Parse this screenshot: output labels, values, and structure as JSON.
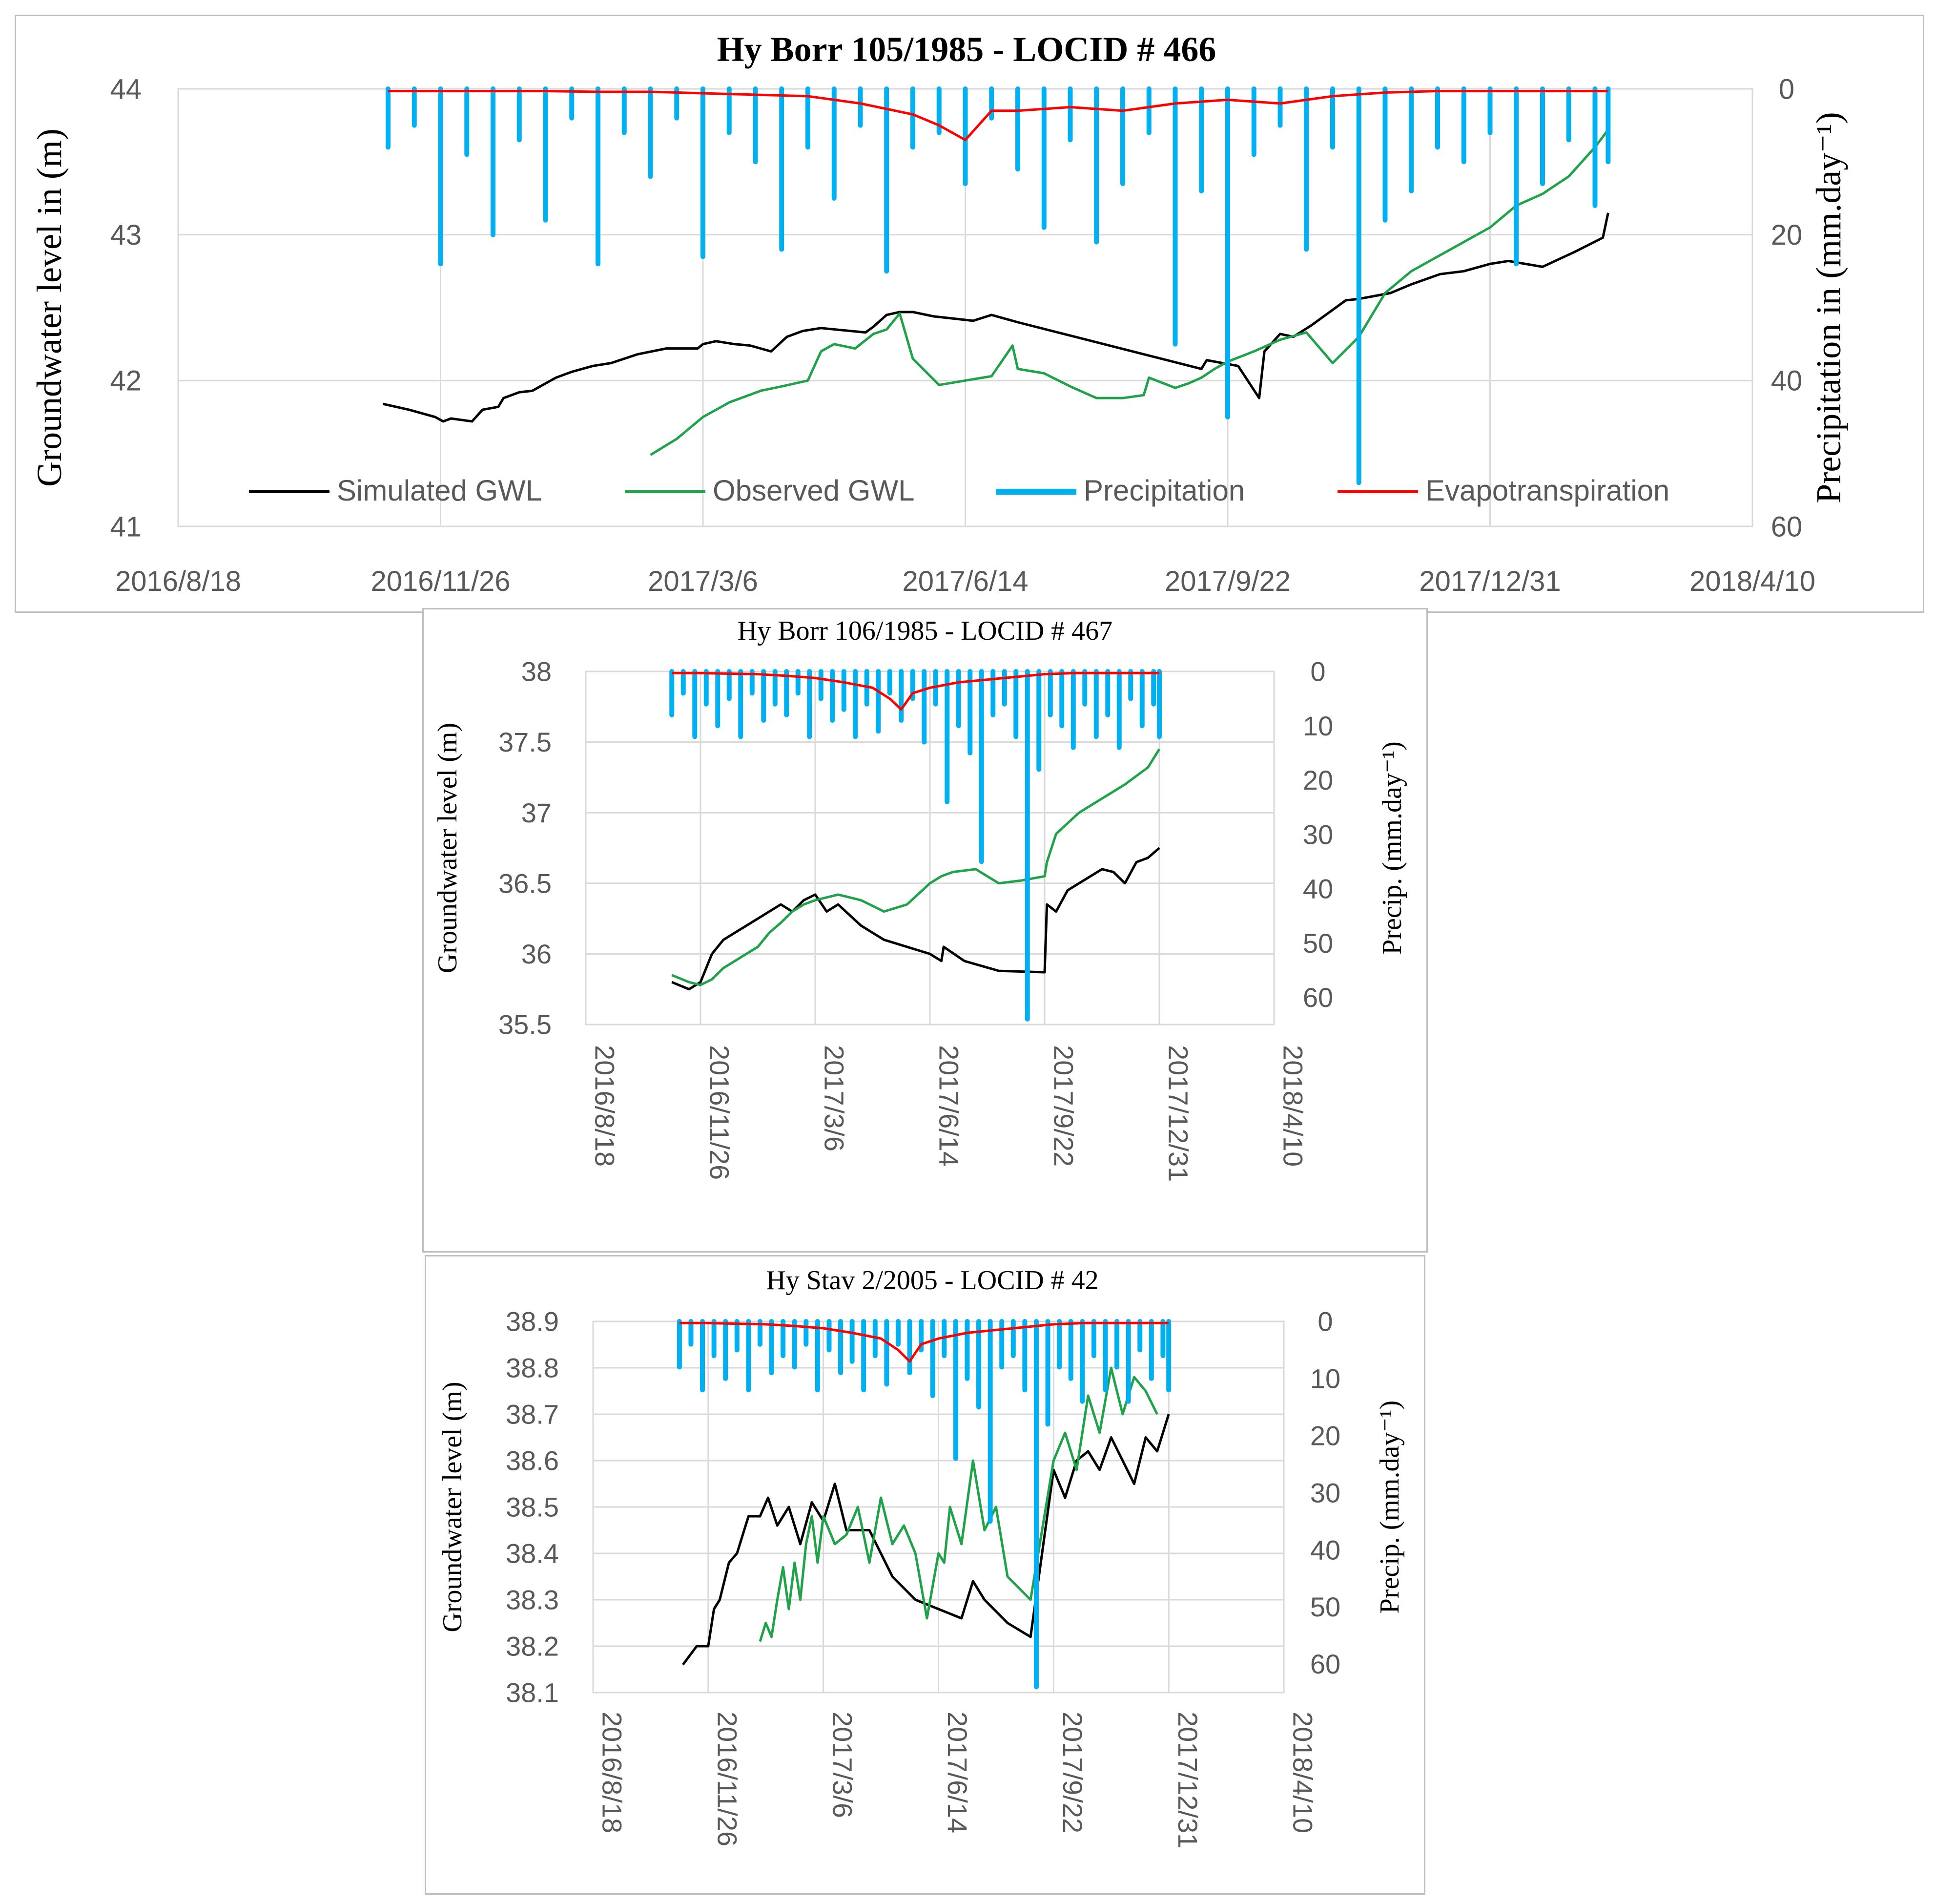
{
  "colors": {
    "simulated": "#000000",
    "observed": "#1fa24a",
    "precipitation": "#00b0f0",
    "evapotranspiration": "#ff0000",
    "grid": "#d9d9d9"
  },
  "chart_data": [
    {
      "type": "line",
      "title": "Hy Borr 105/1985 - LOCID # 466",
      "ylabel": "Groundwater level in (m)",
      "y2label": "Precipitation in (mm.day⁻¹)",
      "ylim": [
        41,
        44
      ],
      "y2lim": [
        0,
        60
      ],
      "y2_inverted": true,
      "yticks": [
        "41",
        "42",
        "43",
        "44"
      ],
      "y2ticks": [
        "0",
        "20",
        "40",
        "60"
      ],
      "x_tick_labels": [
        "2016/8/18",
        "2016/11/26",
        "2017/3/6",
        "2017/6/14",
        "2017/9/22",
        "2017/12/31",
        "2018/4/10"
      ],
      "legend": [
        "Simulated GWL",
        "Observed GWL",
        "Precipitation",
        "Evapotranspiration"
      ],
      "legend_position": "bottom",
      "series": [
        {
          "name": "Simulated GWL",
          "x": [
            78,
            88,
            98,
            101,
            104,
            112,
            116,
            122,
            124,
            130,
            135,
            144,
            150,
            158,
            165,
            175,
            186,
            198,
            200,
            205,
            212,
            218,
            226,
            232,
            238,
            245,
            262,
            265,
            270,
            275,
            280,
            288,
            303,
            310,
            314,
            320,
            390,
            392,
            404,
            412,
            414,
            420,
            425,
            432,
            445,
            450,
            462,
            470,
            481,
            490,
            500,
            507,
            520,
            532,
            543,
            545
          ],
          "values": [
            41.84,
            41.8,
            41.75,
            41.72,
            41.74,
            41.72,
            41.8,
            41.82,
            41.88,
            41.92,
            41.93,
            42.02,
            42.06,
            42.1,
            42.12,
            42.18,
            42.22,
            42.22,
            42.25,
            42.27,
            42.25,
            42.24,
            42.2,
            42.3,
            42.34,
            42.36,
            42.33,
            42.37,
            42.45,
            42.47,
            42.47,
            42.44,
            42.41,
            42.45,
            42.43,
            42.4,
            42.08,
            42.14,
            42.1,
            41.88,
            42.2,
            42.32,
            42.3,
            42.38,
            42.55,
            42.56,
            42.6,
            42.66,
            42.73,
            42.75,
            42.8,
            42.82,
            42.78,
            42.88,
            42.98,
            43.15
          ]
        },
        {
          "name": "Observed GWL",
          "x": [
            180,
            190,
            200,
            210,
            222,
            230,
            240,
            245,
            250,
            258,
            265,
            270,
            275,
            280,
            290,
            300,
            310,
            318,
            320,
            330,
            340,
            350,
            360,
            368,
            370,
            380,
            385,
            390,
            395,
            400,
            410,
            420,
            430,
            440,
            450,
            460,
            470,
            480,
            490,
            500,
            510,
            520,
            530,
            540,
            545
          ],
          "values": [
            41.49,
            41.6,
            41.75,
            41.85,
            41.93,
            41.96,
            42.0,
            42.2,
            42.25,
            42.22,
            42.32,
            42.35,
            42.46,
            42.15,
            41.97,
            42.0,
            42.03,
            42.24,
            42.08,
            42.05,
            41.96,
            41.88,
            41.88,
            41.9,
            42.02,
            41.95,
            41.98,
            42.02,
            42.08,
            42.13,
            42.2,
            42.28,
            42.33,
            42.12,
            42.3,
            42.6,
            42.75,
            42.85,
            42.95,
            43.05,
            43.2,
            43.28,
            43.4,
            43.6,
            43.72
          ]
        },
        {
          "name": "Precipitation",
          "x": [
            80,
            90,
            100,
            110,
            120,
            130,
            140,
            150,
            160,
            170,
            180,
            190,
            200,
            210,
            220,
            230,
            240,
            250,
            260,
            270,
            280,
            290,
            300,
            310,
            320,
            330,
            340,
            350,
            360,
            370,
            380,
            390,
            400,
            410,
            420,
            430,
            440,
            450,
            460,
            470,
            480,
            490,
            500,
            510,
            520,
            530,
            540,
            545
          ],
          "values": [
            8,
            5,
            24,
            9,
            20,
            7,
            18,
            4,
            24,
            6,
            12,
            4,
            23,
            6,
            10,
            22,
            8,
            15,
            5,
            25,
            8,
            6,
            13,
            4,
            11,
            19,
            7,
            21,
            13,
            6,
            35,
            14,
            45,
            9,
            5,
            22,
            8,
            54,
            18,
            14,
            8,
            10,
            6,
            24,
            13,
            7,
            16,
            10
          ]
        },
        {
          "name": "Evapotranspiration",
          "x": [
            80,
            100,
            120,
            140,
            160,
            180,
            200,
            220,
            240,
            260,
            280,
            290,
            300,
            310,
            320,
            340,
            360,
            380,
            400,
            420,
            440,
            460,
            480,
            500,
            520,
            545
          ],
          "values": [
            0.3,
            0.3,
            0.3,
            0.3,
            0.4,
            0.4,
            0.6,
            0.8,
            1.0,
            2.0,
            3.5,
            5.0,
            7.0,
            3.0,
            3.0,
            2.5,
            3.0,
            2.0,
            1.5,
            2.0,
            1.0,
            0.5,
            0.3,
            0.3,
            0.3,
            0.3
          ]
        }
      ]
    },
    {
      "type": "line",
      "title": "Hy Borr 106/1985 - LOCID # 467",
      "ylabel": "Groundwater level (m)",
      "y2label": "Precip. (mm.day⁻¹)",
      "ylim": [
        35.5,
        38
      ],
      "y2lim": [
        0,
        65
      ],
      "y2_inverted": true,
      "yticks": [
        "35.5",
        "36",
        "36.5",
        "37",
        "37.5",
        "38"
      ],
      "y2ticks": [
        "0",
        "10",
        "20",
        "30",
        "40",
        "50",
        "60"
      ],
      "x_tick_labels": [
        "2016/8/18",
        "2016/11/26",
        "2017/3/6",
        "2017/6/14",
        "2017/9/22",
        "2017/12/31",
        "2018/4/10"
      ],
      "series": [
        {
          "name": "Simulated GWL",
          "x": [
            75,
            90,
            100,
            110,
            120,
            130,
            140,
            150,
            160,
            170,
            180,
            190,
            200,
            210,
            220,
            240,
            260,
            280,
            300,
            310,
            312,
            330,
            360,
            400,
            402,
            410,
            420,
            430,
            440,
            450,
            460,
            470,
            480,
            490,
            500
          ],
          "values": [
            35.8,
            35.75,
            35.8,
            36.0,
            36.1,
            36.15,
            36.2,
            36.25,
            36.3,
            36.35,
            36.3,
            36.38,
            36.42,
            36.3,
            36.35,
            36.2,
            36.1,
            36.05,
            36.0,
            35.95,
            36.05,
            35.95,
            35.88,
            35.87,
            36.35,
            36.3,
            36.45,
            36.5,
            36.55,
            36.6,
            36.58,
            36.5,
            36.65,
            36.68,
            36.75
          ]
        },
        {
          "name": "Observed GWL",
          "x": [
            75,
            90,
            100,
            110,
            120,
            130,
            140,
            150,
            160,
            170,
            180,
            190,
            200,
            220,
            240,
            260,
            280,
            300,
            310,
            320,
            340,
            350,
            360,
            380,
            400,
            402,
            410,
            430,
            450,
            470,
            490,
            500
          ],
          "values": [
            35.85,
            35.8,
            35.78,
            35.82,
            35.9,
            35.95,
            36.0,
            36.05,
            36.15,
            36.22,
            36.3,
            36.35,
            36.38,
            36.42,
            36.38,
            36.3,
            36.35,
            36.5,
            36.55,
            36.58,
            36.6,
            36.55,
            36.5,
            36.52,
            36.55,
            36.65,
            36.85,
            37.0,
            37.1,
            37.2,
            37.32,
            37.45
          ]
        },
        {
          "name": "Precipitation",
          "x": [
            75,
            85,
            95,
            105,
            115,
            125,
            135,
            145,
            155,
            165,
            175,
            185,
            195,
            205,
            215,
            225,
            235,
            245,
            255,
            265,
            275,
            285,
            295,
            305,
            315,
            325,
            335,
            345,
            355,
            365,
            375,
            385,
            395,
            405,
            415,
            425,
            435,
            445,
            455,
            465,
            475,
            485,
            495,
            500
          ],
          "values": [
            8,
            4,
            12,
            6,
            10,
            5,
            12,
            4,
            9,
            6,
            8,
            4,
            12,
            5,
            9,
            7,
            12,
            6,
            11,
            4,
            9,
            5,
            13,
            6,
            24,
            10,
            15,
            35,
            8,
            6,
            12,
            64,
            18,
            8,
            10,
            14,
            6,
            12,
            8,
            14,
            5,
            10,
            6,
            12
          ]
        },
        {
          "name": "Evapotranspiration",
          "x": [
            75,
            100,
            125,
            150,
            175,
            200,
            225,
            250,
            265,
            275,
            285,
            300,
            325,
            350,
            375,
            400,
            425,
            450,
            500
          ],
          "values": [
            0.3,
            0.3,
            0.4,
            0.5,
            0.8,
            1.2,
            2.0,
            3.0,
            5.0,
            7.0,
            4.0,
            3.0,
            2.0,
            1.5,
            1.0,
            0.5,
            0.3,
            0.3,
            0.3
          ]
        }
      ]
    },
    {
      "type": "line",
      "title": "Hy Stav 2/2005 - LOCID # 42",
      "ylabel": "Groundwater level (m)",
      "y2label": "Precip. (mm.day⁻¹)",
      "ylim": [
        38.1,
        38.9
      ],
      "y2lim": [
        0,
        65
      ],
      "y2_inverted": true,
      "yticks": [
        "38.1",
        "38.2",
        "38.3",
        "38.4",
        "38.5",
        "38.6",
        "38.7",
        "38.8",
        "38.9"
      ],
      "y2ticks": [
        "0",
        "10",
        "20",
        "30",
        "40",
        "50",
        "60"
      ],
      "x_tick_labels": [
        "2016/8/18",
        "2016/11/26",
        "2017/3/6",
        "2017/6/14",
        "2017/9/22",
        "2017/12/31",
        "2018/4/10"
      ],
      "series": [
        {
          "name": "Simulated GWL",
          "x": [
            78,
            90,
            100,
            105,
            110,
            118,
            125,
            135,
            145,
            152,
            160,
            170,
            180,
            190,
            200,
            210,
            220,
            240,
            260,
            280,
            300,
            320,
            330,
            340,
            360,
            380,
            400,
            410,
            420,
            430,
            440,
            450,
            460,
            470,
            480,
            490,
            500
          ],
          "values": [
            38.16,
            38.2,
            38.2,
            38.28,
            38.3,
            38.38,
            38.4,
            38.48,
            38.48,
            38.52,
            38.46,
            38.5,
            38.42,
            38.51,
            38.47,
            38.55,
            38.45,
            38.45,
            38.35,
            38.3,
            38.28,
            38.26,
            38.34,
            38.3,
            38.25,
            38.22,
            38.58,
            38.52,
            38.6,
            38.62,
            38.58,
            38.65,
            38.6,
            38.55,
            38.65,
            38.62,
            38.7
          ]
        },
        {
          "name": "Observed GWL",
          "x": [
            145,
            150,
            155,
            160,
            165,
            170,
            175,
            180,
            185,
            190,
            195,
            200,
            210,
            220,
            230,
            240,
            250,
            260,
            270,
            280,
            290,
            300,
            305,
            310,
            320,
            330,
            340,
            350,
            360,
            380,
            400,
            410,
            420,
            430,
            440,
            450,
            460,
            470,
            480,
            490
          ],
          "values": [
            38.21,
            38.25,
            38.22,
            38.3,
            38.37,
            38.28,
            38.38,
            38.3,
            38.42,
            38.48,
            38.38,
            38.48,
            38.42,
            38.44,
            38.5,
            38.38,
            38.52,
            38.42,
            38.46,
            38.4,
            38.26,
            38.4,
            38.38,
            38.5,
            38.42,
            38.6,
            38.45,
            38.5,
            38.35,
            38.3,
            38.6,
            38.66,
            38.58,
            38.74,
            38.66,
            38.8,
            38.7,
            38.78,
            38.75,
            38.7
          ]
        },
        {
          "name": "Precipitation",
          "x": [
            75,
            85,
            95,
            105,
            115,
            125,
            135,
            145,
            155,
            165,
            175,
            185,
            195,
            205,
            215,
            225,
            235,
            245,
            255,
            265,
            275,
            285,
            295,
            305,
            315,
            325,
            335,
            345,
            355,
            365,
            375,
            385,
            395,
            405,
            415,
            425,
            435,
            445,
            455,
            465,
            475,
            485,
            495,
            500
          ],
          "values": [
            8,
            4,
            12,
            6,
            10,
            5,
            12,
            4,
            9,
            6,
            8,
            4,
            12,
            5,
            9,
            7,
            12,
            6,
            11,
            4,
            9,
            5,
            13,
            6,
            24,
            10,
            15,
            35,
            8,
            6,
            12,
            64,
            18,
            8,
            10,
            14,
            6,
            12,
            8,
            14,
            5,
            10,
            6,
            12
          ]
        },
        {
          "name": "Evapotranspiration",
          "x": [
            75,
            100,
            125,
            150,
            175,
            200,
            225,
            250,
            265,
            275,
            285,
            300,
            325,
            350,
            375,
            400,
            425,
            450,
            500
          ],
          "values": [
            0.3,
            0.3,
            0.4,
            0.5,
            0.8,
            1.2,
            2.0,
            3.0,
            5.0,
            7.0,
            4.0,
            3.0,
            2.0,
            1.5,
            1.0,
            0.5,
            0.3,
            0.3,
            0.3
          ]
        }
      ]
    }
  ]
}
